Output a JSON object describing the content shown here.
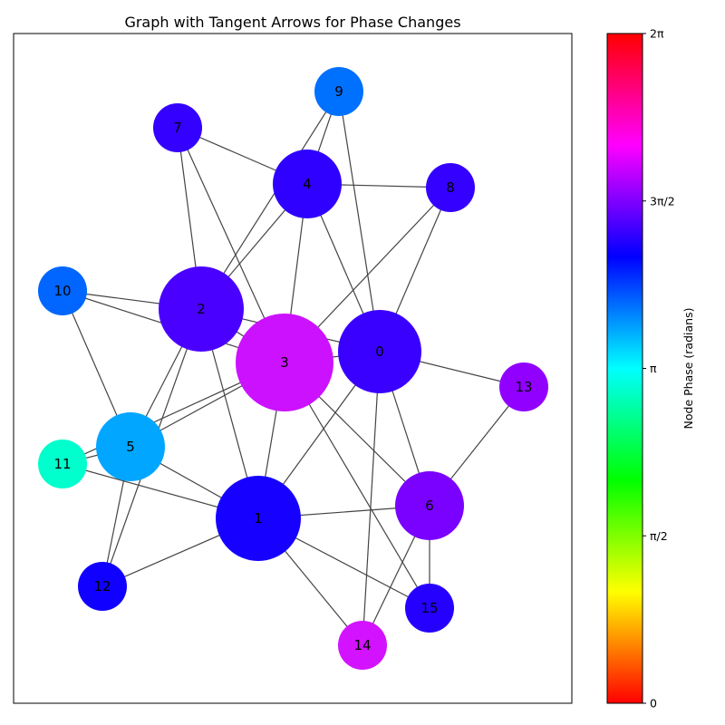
{
  "title": "Graph with Tangent Arrows for Phase Changes",
  "nodes": [
    {
      "id": "0",
      "label": "0",
      "color": "#3a00ff"
    },
    {
      "id": "1",
      "label": "1",
      "color": "#1600ff"
    },
    {
      "id": "2",
      "label": "2",
      "color": "#4a00ff"
    },
    {
      "id": "3",
      "label": "3",
      "color": "#cc11ff"
    },
    {
      "id": "4",
      "label": "4",
      "color": "#2f00ff"
    },
    {
      "id": "5",
      "label": "5",
      "color": "#00a6ff"
    },
    {
      "id": "6",
      "label": "6",
      "color": "#7a00ff"
    },
    {
      "id": "7",
      "label": "7",
      "color": "#3400ff"
    },
    {
      "id": "8",
      "label": "8",
      "color": "#3400ff"
    },
    {
      "id": "9",
      "label": "9",
      "color": "#0070ff"
    },
    {
      "id": "10",
      "label": "10",
      "color": "#0066ff"
    },
    {
      "id": "11",
      "label": "11",
      "color": "#00ffcc"
    },
    {
      "id": "12",
      "label": "12",
      "color": "#1000ff"
    },
    {
      "id": "13",
      "label": "13",
      "color": "#9100ff"
    },
    {
      "id": "14",
      "label": "14",
      "color": "#d313ff"
    },
    {
      "id": "15",
      "label": "15",
      "color": "#2600ff"
    }
  ],
  "edges": [
    [
      "0",
      "3"
    ],
    [
      "0",
      "4"
    ],
    [
      "0",
      "9"
    ],
    [
      "0",
      "8"
    ],
    [
      "0",
      "13"
    ],
    [
      "0",
      "6"
    ],
    [
      "0",
      "1"
    ],
    [
      "0",
      "14"
    ],
    [
      "0",
      "2"
    ],
    [
      "1",
      "3"
    ],
    [
      "1",
      "2"
    ],
    [
      "1",
      "6"
    ],
    [
      "1",
      "5"
    ],
    [
      "1",
      "11"
    ],
    [
      "1",
      "12"
    ],
    [
      "1",
      "14"
    ],
    [
      "1",
      "15"
    ],
    [
      "2",
      "4"
    ],
    [
      "2",
      "7"
    ],
    [
      "2",
      "10"
    ],
    [
      "2",
      "5"
    ],
    [
      "2",
      "12"
    ],
    [
      "2",
      "3"
    ],
    [
      "3",
      "4"
    ],
    [
      "3",
      "7"
    ],
    [
      "3",
      "10"
    ],
    [
      "3",
      "5"
    ],
    [
      "3",
      "8"
    ],
    [
      "3",
      "6"
    ],
    [
      "3",
      "15"
    ],
    [
      "3",
      "11"
    ],
    [
      "4",
      "9"
    ],
    [
      "4",
      "7"
    ],
    [
      "4",
      "8"
    ],
    [
      "5",
      "10"
    ],
    [
      "5",
      "11"
    ],
    [
      "5",
      "12"
    ],
    [
      "6",
      "13"
    ],
    [
      "6",
      "15"
    ],
    [
      "6",
      "14"
    ],
    [
      "9",
      "2"
    ]
  ],
  "colorbar": {
    "label": "Node Phase (radians)",
    "ticks": [
      "0",
      "π/2",
      "π",
      "3π/2",
      "2π"
    ],
    "gradient": [
      "#ff0000",
      "#ffff00",
      "#00ff00",
      "#00ffff",
      "#0000ff",
      "#ff00ff",
      "#ff0000"
    ]
  }
}
